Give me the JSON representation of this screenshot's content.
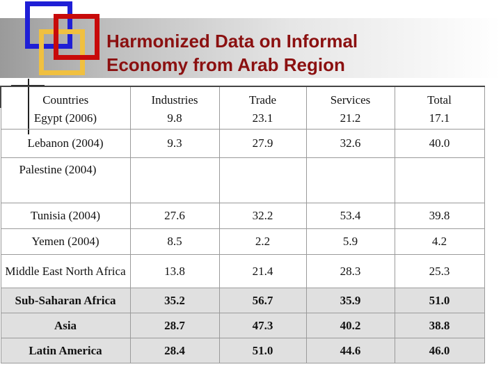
{
  "slide": {
    "title": "Harmonized Data on  Informal\nEconomy from Arab Region"
  },
  "colors": {
    "title": "#8b1010",
    "deco_blue": "#1f1fd6",
    "deco_red": "#c80a0a",
    "deco_yellow": "#f0c040",
    "region_row_bg": "#e0e0e0"
  },
  "table": {
    "headers": [
      "Countries",
      "Industries",
      "Trade",
      "Services",
      "Total"
    ],
    "rows": [
      {
        "name": "Egypt (2006)",
        "industries": "9.8",
        "trade": "23.1",
        "services": "21.2",
        "total": "17.1"
      },
      {
        "name": "Lebanon (2004)",
        "industries": "9.3",
        "trade": "27.9",
        "services": "32.6",
        "total": "40.0"
      },
      {
        "name": "Palestine (2004)",
        "industries": "",
        "trade": "",
        "services": "",
        "total": ""
      },
      {
        "name": "Tunisia (2004)",
        "industries": "27.6",
        "trade": "32.2",
        "services": "53.4",
        "total": "39.8"
      },
      {
        "name": "Yemen (2004)",
        "industries": "8.5",
        "trade": "2.2",
        "services": "5.9",
        "total": "4.2"
      },
      {
        "name": "Middle East North Africa",
        "industries": "13.8",
        "trade": "21.4",
        "services": "28.3",
        "total": "25.3"
      },
      {
        "name": "Sub-Saharan Africa",
        "industries": "35.2",
        "trade": "56.7",
        "services": "35.9",
        "total": "51.0"
      },
      {
        "name": "Asia",
        "industries": "28.7",
        "trade": "47.3",
        "services": "40.2",
        "total": "38.8"
      },
      {
        "name": "Latin America",
        "industries": "28.4",
        "trade": "51.0",
        "services": "44.6",
        "total": "46.0"
      }
    ]
  }
}
